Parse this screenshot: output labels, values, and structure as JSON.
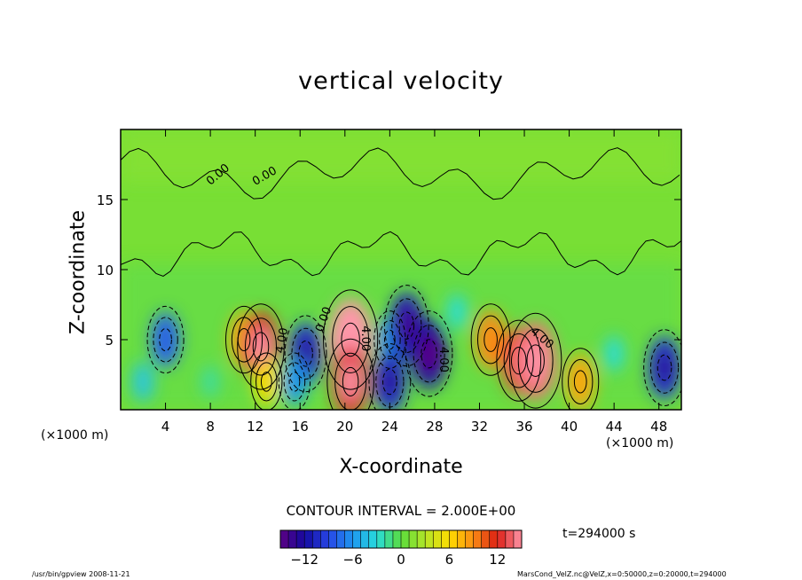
{
  "chart_data": {
    "type": "heatmap",
    "title": "vertical velocity",
    "xlabel": "X-coordinate",
    "ylabel": "Z-coordinate",
    "x_unit_note": "(×1000 m)",
    "xlim": [
      0,
      50
    ],
    "ylim": [
      0,
      20
    ],
    "x_ticks": [
      "4",
      "8",
      "12",
      "16",
      "20",
      "24",
      "28",
      "32",
      "36",
      "40",
      "44",
      "48"
    ],
    "y_ticks": [
      "5",
      "10",
      "15"
    ],
    "contour_interval_text": "CONTOUR INTERVAL = 2.000E+00",
    "contour_labels": [
      "0.00",
      "4.00",
      "-4.00"
    ],
    "colorbar": {
      "range": [
        -15,
        15
      ],
      "ticks": [
        "-12",
        "-6",
        "0",
        "6",
        "12"
      ]
    },
    "cells": [
      {
        "x": 4,
        "z": 5,
        "value": -8
      },
      {
        "x": 2,
        "z": 2,
        "value": -4
      },
      {
        "x": 11,
        "z": 5,
        "value": 8
      },
      {
        "x": 12.5,
        "z": 4.5,
        "value": 12
      },
      {
        "x": 13,
        "z": 2,
        "value": 6
      },
      {
        "x": 16.5,
        "z": 4,
        "value": -10
      },
      {
        "x": 15.5,
        "z": 2,
        "value": -6
      },
      {
        "x": 20.5,
        "z": 5,
        "value": 15
      },
      {
        "x": 20.5,
        "z": 2,
        "value": 12
      },
      {
        "x": 24,
        "z": 5,
        "value": -6
      },
      {
        "x": 25.5,
        "z": 6,
        "value": -11
      },
      {
        "x": 27.5,
        "z": 4,
        "value": -12
      },
      {
        "x": 24,
        "z": 2,
        "value": -10
      },
      {
        "x": 33,
        "z": 5,
        "value": 9
      },
      {
        "x": 35.5,
        "z": 3.5,
        "value": 11
      },
      {
        "x": 37,
        "z": 3.5,
        "value": 14
      },
      {
        "x": 41,
        "z": 2,
        "value": 8
      },
      {
        "x": 48.5,
        "z": 3,
        "value": -10
      },
      {
        "x": 44,
        "z": 4,
        "value": -3
      },
      {
        "x": 30,
        "z": 7,
        "value": -3
      },
      {
        "x": 8,
        "z": 2,
        "value": -2
      }
    ]
  },
  "time_text": "t=294000 s",
  "footer": {
    "left": "/usr/bin/gpview   2008-11-21",
    "right": "MarsCond_VelZ.nc@VelZ,x=0:50000,z=0:20000,t=294000"
  }
}
